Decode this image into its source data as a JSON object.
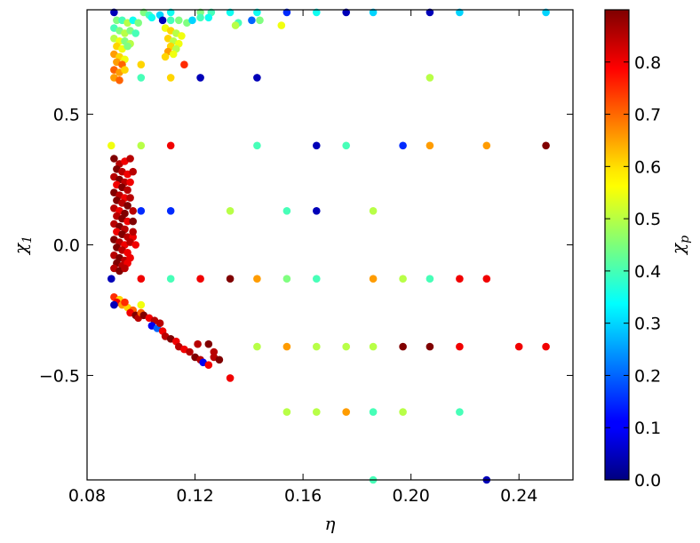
{
  "chart_data": {
    "type": "scatter",
    "title": "",
    "xlabel": "η",
    "ylabel": "χ",
    "ylabel_subscript": "1",
    "colorbar_label": "χ",
    "colorbar_label_subscript": "p",
    "xlim": [
      0.08,
      0.26
    ],
    "ylim": [
      -0.9,
      0.9
    ],
    "clim": [
      0.0,
      0.9
    ],
    "colormap": "jet",
    "grid": false,
    "legend": "none",
    "x_ticks": [
      0.08,
      0.12,
      0.16,
      0.2,
      0.24
    ],
    "x_tick_labels": [
      "0.08",
      "0.12",
      "0.16",
      "0.20",
      "0.24"
    ],
    "y_ticks": [
      0.5,
      0.0,
      -0.5
    ],
    "y_tick_labels": [
      "0.5",
      "0.0",
      "−0.5"
    ],
    "colorbar_ticks": [
      0.0,
      0.1,
      0.2,
      0.3,
      0.4,
      0.5,
      0.6,
      0.7,
      0.8
    ],
    "colorbar_tick_labels": [
      "0.0",
      "0.1",
      "0.2",
      "0.3",
      "0.4",
      "0.5",
      "0.6",
      "0.7",
      "0.8"
    ],
    "points": [
      [
        0.09,
        0.89,
        0.05
      ],
      [
        0.101,
        0.89,
        0.45
      ],
      [
        0.103,
        0.88,
        0.4
      ],
      [
        0.107,
        0.88,
        0.3
      ],
      [
        0.111,
        0.89,
        0.35
      ],
      [
        0.122,
        0.89,
        0.45
      ],
      [
        0.126,
        0.89,
        0.4
      ],
      [
        0.133,
        0.89,
        0.35
      ],
      [
        0.143,
        0.89,
        0.35
      ],
      [
        0.154,
        0.89,
        0.15
      ],
      [
        0.165,
        0.89,
        0.35
      ],
      [
        0.176,
        0.89,
        0.05
      ],
      [
        0.186,
        0.89,
        0.3
      ],
      [
        0.207,
        0.89,
        0.05
      ],
      [
        0.218,
        0.89,
        0.3
      ],
      [
        0.25,
        0.89,
        0.3
      ],
      [
        0.091,
        0.86,
        0.45
      ],
      [
        0.093,
        0.86,
        0.4
      ],
      [
        0.095,
        0.85,
        0.5
      ],
      [
        0.097,
        0.86,
        0.35
      ],
      [
        0.099,
        0.85,
        0.45
      ],
      [
        0.104,
        0.87,
        0.35
      ],
      [
        0.108,
        0.86,
        0.05
      ],
      [
        0.111,
        0.86,
        0.4
      ],
      [
        0.114,
        0.86,
        0.45
      ],
      [
        0.117,
        0.85,
        0.45
      ],
      [
        0.119,
        0.86,
        0.3
      ],
      [
        0.122,
        0.87,
        0.4
      ],
      [
        0.125,
        0.87,
        0.35
      ],
      [
        0.141,
        0.86,
        0.2
      ],
      [
        0.144,
        0.86,
        0.45
      ],
      [
        0.136,
        0.85,
        0.4
      ],
      [
        0.135,
        0.84,
        0.5
      ],
      [
        0.152,
        0.84,
        0.55
      ],
      [
        0.09,
        0.83,
        0.4
      ],
      [
        0.092,
        0.82,
        0.45
      ],
      [
        0.094,
        0.81,
        0.5
      ],
      [
        0.096,
        0.82,
        0.45
      ],
      [
        0.098,
        0.81,
        0.4
      ],
      [
        0.09,
        0.79,
        0.5
      ],
      [
        0.092,
        0.78,
        0.55
      ],
      [
        0.094,
        0.78,
        0.45
      ],
      [
        0.096,
        0.77,
        0.5
      ],
      [
        0.091,
        0.76,
        0.6
      ],
      [
        0.093,
        0.75,
        0.55
      ],
      [
        0.095,
        0.76,
        0.45
      ],
      [
        0.09,
        0.73,
        0.65
      ],
      [
        0.092,
        0.72,
        0.6
      ],
      [
        0.094,
        0.71,
        0.55
      ],
      [
        0.091,
        0.7,
        0.65
      ],
      [
        0.093,
        0.69,
        0.7
      ],
      [
        0.09,
        0.67,
        0.7
      ],
      [
        0.092,
        0.66,
        0.65
      ],
      [
        0.094,
        0.67,
        0.6
      ],
      [
        0.09,
        0.64,
        0.65
      ],
      [
        0.092,
        0.63,
        0.7
      ],
      [
        0.109,
        0.83,
        0.55
      ],
      [
        0.111,
        0.82,
        0.6
      ],
      [
        0.113,
        0.81,
        0.5
      ],
      [
        0.115,
        0.8,
        0.55
      ],
      [
        0.11,
        0.79,
        0.6
      ],
      [
        0.112,
        0.78,
        0.5
      ],
      [
        0.114,
        0.77,
        0.55
      ],
      [
        0.111,
        0.76,
        0.6
      ],
      [
        0.113,
        0.75,
        0.5
      ],
      [
        0.11,
        0.74,
        0.65
      ],
      [
        0.112,
        0.73,
        0.55
      ],
      [
        0.109,
        0.72,
        0.6
      ],
      [
        0.116,
        0.69,
        0.75
      ],
      [
        0.1,
        0.69,
        0.6
      ],
      [
        0.1,
        0.64,
        0.4
      ],
      [
        0.111,
        0.64,
        0.6
      ],
      [
        0.122,
        0.64,
        0.05
      ],
      [
        0.143,
        0.64,
        0.05
      ],
      [
        0.207,
        0.64,
        0.5
      ],
      [
        0.089,
        0.38,
        0.55
      ],
      [
        0.1,
        0.38,
        0.5
      ],
      [
        0.111,
        0.38,
        0.8
      ],
      [
        0.143,
        0.38,
        0.4
      ],
      [
        0.165,
        0.38,
        0.05
      ],
      [
        0.176,
        0.38,
        0.4
      ],
      [
        0.197,
        0.38,
        0.15
      ],
      [
        0.207,
        0.38,
        0.65
      ],
      [
        0.228,
        0.38,
        0.65
      ],
      [
        0.25,
        0.38,
        0.9
      ],
      [
        0.1,
        0.13,
        0.15
      ],
      [
        0.111,
        0.13,
        0.15
      ],
      [
        0.133,
        0.13,
        0.5
      ],
      [
        0.154,
        0.13,
        0.4
      ],
      [
        0.165,
        0.13,
        0.05
      ],
      [
        0.186,
        0.13,
        0.5
      ],
      [
        0.089,
        -0.13,
        0.05
      ],
      [
        0.1,
        -0.13,
        0.8
      ],
      [
        0.111,
        -0.13,
        0.4
      ],
      [
        0.122,
        -0.13,
        0.8
      ],
      [
        0.133,
        -0.13,
        0.9
      ],
      [
        0.143,
        -0.13,
        0.65
      ],
      [
        0.154,
        -0.13,
        0.45
      ],
      [
        0.165,
        -0.13,
        0.4
      ],
      [
        0.186,
        -0.13,
        0.65
      ],
      [
        0.197,
        -0.13,
        0.5
      ],
      [
        0.207,
        -0.13,
        0.4
      ],
      [
        0.218,
        -0.13,
        0.8
      ],
      [
        0.228,
        -0.13,
        0.8
      ],
      [
        0.143,
        -0.39,
        0.5
      ],
      [
        0.154,
        -0.39,
        0.65
      ],
      [
        0.165,
        -0.39,
        0.5
      ],
      [
        0.176,
        -0.39,
        0.5
      ],
      [
        0.186,
        -0.39,
        0.5
      ],
      [
        0.197,
        -0.39,
        0.9
      ],
      [
        0.207,
        -0.39,
        0.9
      ],
      [
        0.218,
        -0.39,
        0.8
      ],
      [
        0.24,
        -0.39,
        0.8
      ],
      [
        0.25,
        -0.39,
        0.8
      ],
      [
        0.154,
        -0.64,
        0.5
      ],
      [
        0.165,
        -0.64,
        0.5
      ],
      [
        0.176,
        -0.64,
        0.65
      ],
      [
        0.186,
        -0.64,
        0.4
      ],
      [
        0.197,
        -0.64,
        0.5
      ],
      [
        0.218,
        -0.64,
        0.4
      ],
      [
        0.186,
        -0.9,
        0.4
      ],
      [
        0.228,
        -0.9,
        0.05
      ],
      [
        0.09,
        0.33,
        0.9
      ],
      [
        0.092,
        0.31,
        0.85
      ],
      [
        0.094,
        0.32,
        0.8
      ],
      [
        0.096,
        0.33,
        0.85
      ],
      [
        0.091,
        0.29,
        0.9
      ],
      [
        0.093,
        0.28,
        0.85
      ],
      [
        0.095,
        0.27,
        0.8
      ],
      [
        0.09,
        0.26,
        0.85
      ],
      [
        0.092,
        0.25,
        0.9
      ],
      [
        0.094,
        0.24,
        0.85
      ],
      [
        0.091,
        0.23,
        0.8
      ],
      [
        0.093,
        0.22,
        0.9
      ],
      [
        0.095,
        0.21,
        0.85
      ],
      [
        0.09,
        0.2,
        0.9
      ],
      [
        0.092,
        0.19,
        0.85
      ],
      [
        0.094,
        0.18,
        0.8
      ],
      [
        0.091,
        0.17,
        0.9
      ],
      [
        0.093,
        0.16,
        0.85
      ],
      [
        0.095,
        0.15,
        0.9
      ],
      [
        0.09,
        0.14,
        0.85
      ],
      [
        0.092,
        0.13,
        0.8
      ],
      [
        0.094,
        0.12,
        0.9
      ],
      [
        0.091,
        0.11,
        0.85
      ],
      [
        0.093,
        0.1,
        0.9
      ],
      [
        0.095,
        0.09,
        0.8
      ],
      [
        0.09,
        0.08,
        0.85
      ],
      [
        0.092,
        0.07,
        0.9
      ],
      [
        0.094,
        0.06,
        0.85
      ],
      [
        0.091,
        0.05,
        0.8
      ],
      [
        0.093,
        0.04,
        0.9
      ],
      [
        0.095,
        0.03,
        0.85
      ],
      [
        0.097,
        0.03,
        0.8
      ],
      [
        0.09,
        0.02,
        0.9
      ],
      [
        0.092,
        0.01,
        0.85
      ],
      [
        0.094,
        0.0,
        0.8
      ],
      [
        0.096,
        0.01,
        0.85
      ],
      [
        0.091,
        -0.01,
        0.9
      ],
      [
        0.093,
        -0.02,
        0.85
      ],
      [
        0.095,
        -0.03,
        0.8
      ],
      [
        0.09,
        -0.04,
        0.85
      ],
      [
        0.092,
        -0.05,
        0.9
      ],
      [
        0.094,
        -0.06,
        0.85
      ],
      [
        0.096,
        -0.05,
        0.8
      ],
      [
        0.091,
        -0.07,
        0.9
      ],
      [
        0.093,
        -0.08,
        0.85
      ],
      [
        0.095,
        -0.07,
        0.8
      ],
      [
        0.09,
        -0.09,
        0.85
      ],
      [
        0.092,
        -0.1,
        0.9
      ],
      [
        0.094,
        -0.09,
        0.85
      ],
      [
        0.097,
        0.05,
        0.85
      ],
      [
        0.097,
        0.09,
        0.9
      ],
      [
        0.097,
        0.13,
        0.85
      ],
      [
        0.098,
        0.0,
        0.8
      ],
      [
        0.096,
        0.18,
        0.85
      ],
      [
        0.096,
        0.24,
        0.8
      ],
      [
        0.097,
        0.28,
        0.85
      ],
      [
        0.09,
        -0.2,
        0.75
      ],
      [
        0.092,
        -0.21,
        0.6
      ],
      [
        0.091,
        -0.22,
        0.8
      ],
      [
        0.09,
        -0.23,
        0.05
      ],
      [
        0.093,
        -0.23,
        0.65
      ],
      [
        0.095,
        -0.24,
        0.6
      ],
      [
        0.094,
        -0.22,
        0.75
      ],
      [
        0.097,
        -0.25,
        0.7
      ],
      [
        0.096,
        -0.26,
        0.8
      ],
      [
        0.098,
        -0.27,
        0.9
      ],
      [
        0.099,
        -0.28,
        0.85
      ],
      [
        0.1,
        -0.26,
        0.7
      ],
      [
        0.101,
        -0.27,
        0.9
      ],
      [
        0.103,
        -0.28,
        0.8
      ],
      [
        0.105,
        -0.29,
        0.85
      ],
      [
        0.104,
        -0.31,
        0.1
      ],
      [
        0.106,
        -0.32,
        0.2
      ],
      [
        0.108,
        -0.33,
        0.8
      ],
      [
        0.109,
        -0.35,
        0.85
      ],
      [
        0.111,
        -0.36,
        0.9
      ],
      [
        0.113,
        -0.37,
        0.8
      ],
      [
        0.114,
        -0.39,
        0.85
      ],
      [
        0.116,
        -0.4,
        0.8
      ],
      [
        0.118,
        -0.41,
        0.85
      ],
      [
        0.12,
        -0.43,
        0.9
      ],
      [
        0.122,
        -0.44,
        0.85
      ],
      [
        0.123,
        -0.45,
        0.1
      ],
      [
        0.125,
        -0.46,
        0.8
      ],
      [
        0.127,
        -0.43,
        0.85
      ],
      [
        0.129,
        -0.44,
        0.9
      ],
      [
        0.121,
        -0.38,
        0.85
      ],
      [
        0.125,
        -0.38,
        0.9
      ],
      [
        0.127,
        -0.41,
        0.85
      ],
      [
        0.133,
        -0.51,
        0.8
      ],
      [
        0.1,
        -0.23,
        0.55
      ],
      [
        0.107,
        -0.3,
        0.85
      ]
    ]
  }
}
